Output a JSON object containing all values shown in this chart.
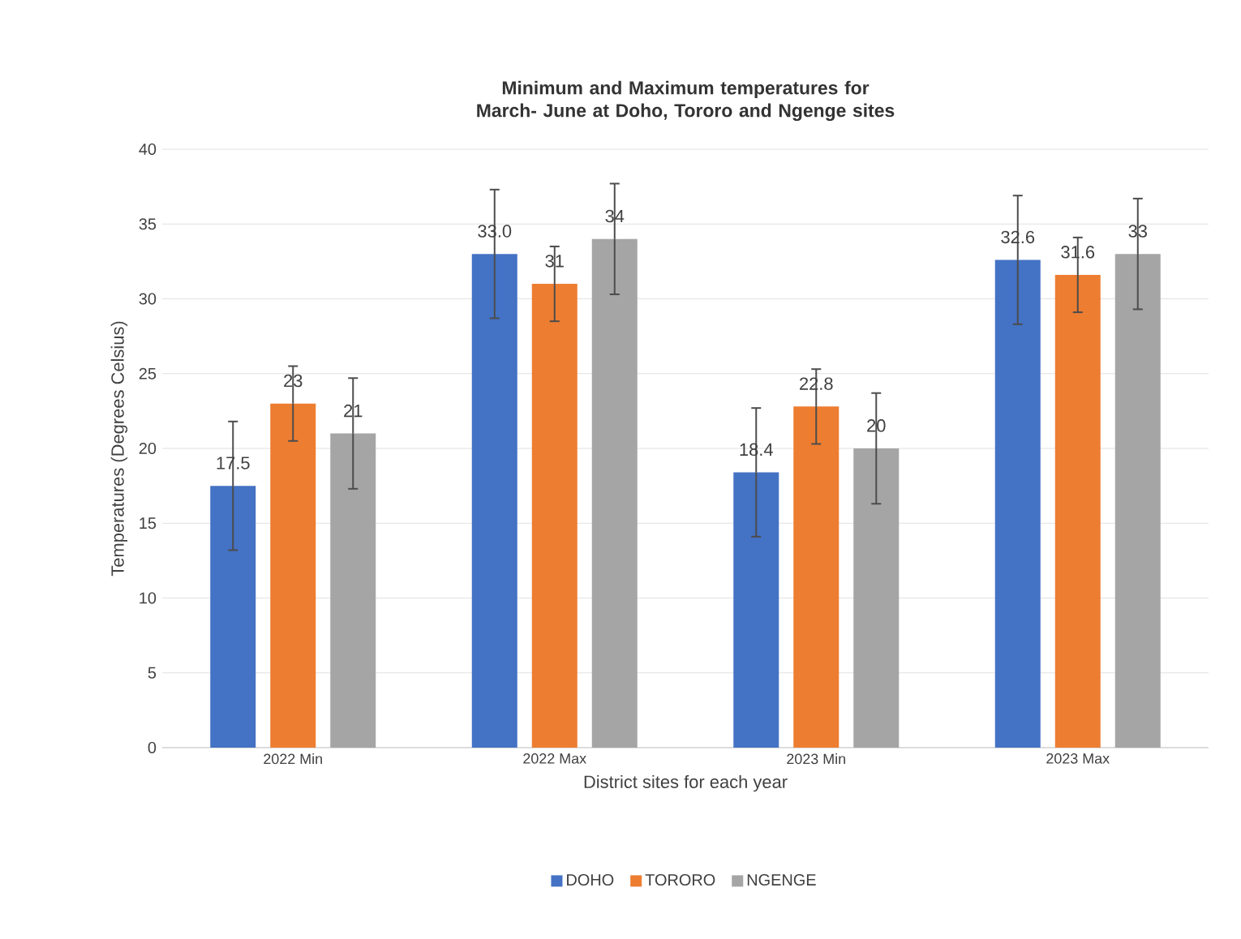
{
  "chart_data": {
    "type": "bar",
    "title": "Minimum and Maximum temperatures for March- June at Doho, Tororo and Ngenge sites",
    "xlabel": "District sites for each year",
    "ylabel": "Temperatures  (Degrees Celsius)",
    "categories": [
      "2022 Min",
      "2022 Max",
      "2023 Min",
      "2023 Max"
    ],
    "series": [
      {
        "name": "DOHO",
        "color": "#4472c4",
        "values": [
          17.5,
          33.0,
          18.4,
          32.6
        ],
        "errors": [
          4.3,
          4.3,
          4.3,
          4.3
        ],
        "value_labels": [
          "17.5",
          "33.0",
          "18.4",
          "32.6"
        ]
      },
      {
        "name": "TORORO",
        "color": "#ed7d31",
        "values": [
          23,
          31,
          22.8,
          31.6
        ],
        "errors": [
          2.5,
          2.5,
          2.5,
          2.5
        ],
        "value_labels": [
          "23",
          "31",
          "22.8",
          "31.6"
        ]
      },
      {
        "name": "NGENGE",
        "color": "#a5a5a5",
        "values": [
          21,
          34,
          20,
          33
        ],
        "errors": [
          3.7,
          3.7,
          3.7,
          3.7
        ],
        "value_labels": [
          "21",
          "34",
          "20",
          "33"
        ]
      }
    ],
    "ylim": [
      0,
      40
    ],
    "yticks": [
      0,
      5,
      10,
      15,
      20,
      25,
      30,
      35,
      40
    ],
    "grid": "y",
    "legend": "bottom"
  }
}
